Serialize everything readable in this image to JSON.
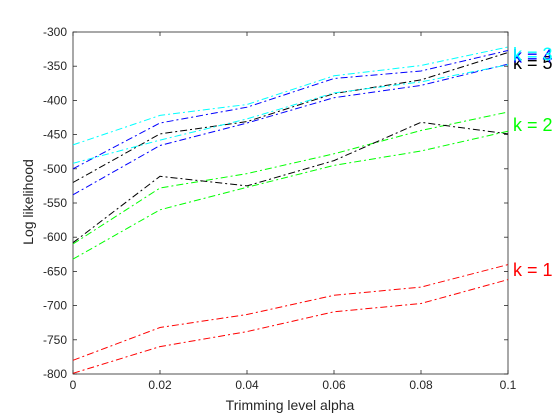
{
  "chart_data": {
    "type": "line",
    "title": "",
    "xlabel": "Trimming level alpha",
    "ylabel": "Log likelihood",
    "xlim": [
      0,
      0.1
    ],
    "ylim": [
      -800,
      -300
    ],
    "x_ticks": [
      "0",
      "0.02",
      "0.04",
      "0.06",
      "0.08",
      "0.1"
    ],
    "y_ticks": [
      "-800",
      "-750",
      "-700",
      "-650",
      "-600",
      "-550",
      "-500",
      "-450",
      "-400",
      "-350",
      "-300"
    ],
    "x": [
      0,
      0.02,
      0.04,
      0.06,
      0.08,
      0.1
    ],
    "grid": false,
    "legend": "none",
    "series": [
      {
        "color": "#ff0000",
        "values": [
          -780,
          -732,
          -713,
          -685,
          -673,
          -640
        ]
      },
      {
        "color": "#ff0000",
        "values": [
          -799,
          -760,
          -738,
          -709,
          -697,
          -662
        ]
      },
      {
        "color": "#00ff00",
        "values": [
          -610,
          -528,
          -507,
          -478,
          -444,
          -417
        ]
      },
      {
        "color": "#00ff00",
        "values": [
          -632,
          -560,
          -527,
          -495,
          -474,
          -445
        ]
      },
      {
        "color": "#000000",
        "values": [
          -608,
          -511,
          -525,
          -488,
          -432,
          -449
        ]
      },
      {
        "color": "#000000",
        "values": [
          -520,
          -449,
          -431,
          -390,
          -370,
          -330
        ]
      },
      {
        "color": "#0000ff",
        "values": [
          -538,
          -466,
          -433,
          -396,
          -378,
          -347
        ]
      },
      {
        "color": "#0000ff",
        "values": [
          -500,
          -433,
          -410,
          -368,
          -357,
          -327
        ]
      },
      {
        "color": "#00ffff",
        "values": [
          -465,
          -422,
          -406,
          -364,
          -349,
          -322
        ]
      },
      {
        "color": "#00ffff",
        "values": [
          -492,
          -458,
          -427,
          -389,
          -373,
          -348
        ]
      }
    ],
    "annotations": [
      {
        "text": "k = 1",
        "x": 0.1,
        "y": -648,
        "color": "#ff0000"
      },
      {
        "text": "k = 2",
        "x": 0.1,
        "y": -436,
        "color": "#00ff00"
      },
      {
        "text": "k = 5",
        "x": 0.1,
        "y": -345,
        "color": "#000000"
      },
      {
        "text": "k = 4",
        "x": 0.1,
        "y": -336,
        "color": "#0000ff"
      },
      {
        "text": "k = 3",
        "x": 0.1,
        "y": -333,
        "color": "#00ffff"
      }
    ]
  }
}
